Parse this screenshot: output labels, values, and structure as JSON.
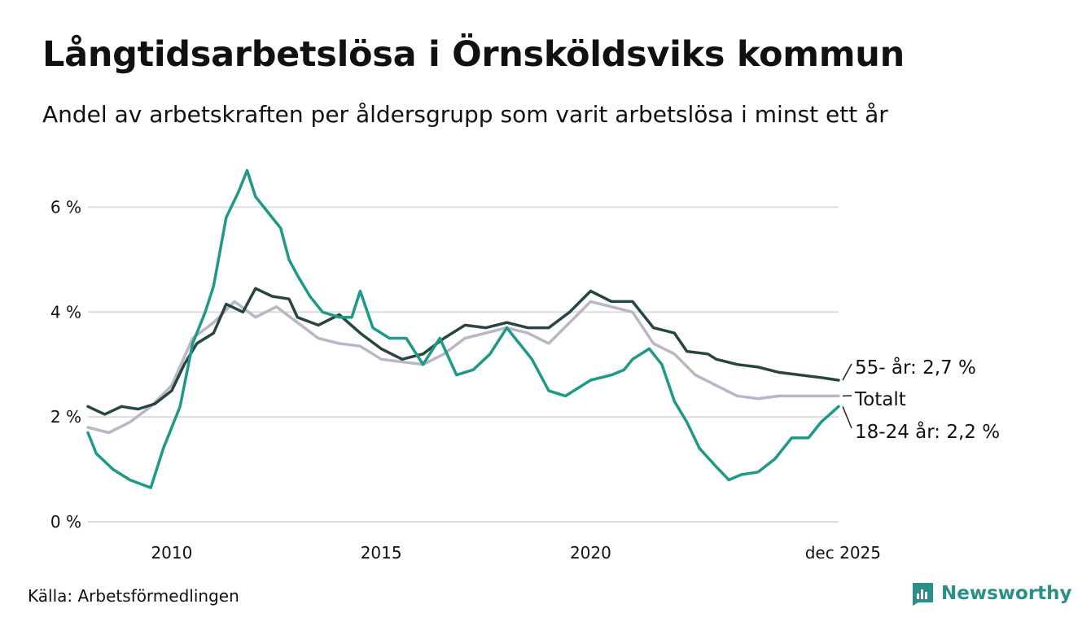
{
  "title": "Långtidsarbetslösa i Örnsköldsviks kommun",
  "subtitle": "Andel av arbetskraften per åldersgrupp som varit arbetslösa i minst ett år",
  "source": "Källa: Arbetsförmedlingen",
  "brand": "Newsworthy",
  "colors": {
    "young": "#1f9987",
    "older": "#27463f",
    "total": "#b9b6c6",
    "grid": "#dcdcdc",
    "brand": "#2a8f86"
  },
  "chart_data": {
    "type": "line",
    "x_range": [
      2008.0,
      2025.92
    ],
    "ylim": [
      0,
      7
    ],
    "y_ticks": [
      0,
      2,
      4,
      6
    ],
    "y_tick_labels": [
      "0 %",
      "2 %",
      "4 %",
      "6 %"
    ],
    "x_ticks": [
      2010,
      2015,
      2020,
      2025.92
    ],
    "x_tick_labels": [
      "2010",
      "2015",
      "2020",
      "dec 2025"
    ],
    "grid": true,
    "series": [
      {
        "key": "total",
        "name": "Totalt",
        "end_label": "Totalt",
        "points": [
          [
            2008,
            1.8
          ],
          [
            2008.5,
            1.7
          ],
          [
            2009,
            1.9
          ],
          [
            2009.5,
            2.2
          ],
          [
            2010,
            2.6
          ],
          [
            2010.5,
            3.5
          ],
          [
            2011,
            3.8
          ],
          [
            2011.5,
            4.2
          ],
          [
            2012,
            3.9
          ],
          [
            2012.5,
            4.1
          ],
          [
            2013,
            3.8
          ],
          [
            2013.5,
            3.5
          ],
          [
            2014,
            3.4
          ],
          [
            2014.5,
            3.35
          ],
          [
            2015,
            3.1
          ],
          [
            2015.5,
            3.05
          ],
          [
            2016,
            3.0
          ],
          [
            2016.5,
            3.2
          ],
          [
            2017,
            3.5
          ],
          [
            2017.5,
            3.6
          ],
          [
            2018,
            3.7
          ],
          [
            2018.5,
            3.6
          ],
          [
            2019,
            3.4
          ],
          [
            2019.5,
            3.8
          ],
          [
            2020,
            4.2
          ],
          [
            2020.5,
            4.1
          ],
          [
            2021,
            4.0
          ],
          [
            2021.5,
            3.4
          ],
          [
            2022,
            3.2
          ],
          [
            2022.5,
            2.8
          ],
          [
            2023,
            2.6
          ],
          [
            2023.5,
            2.4
          ],
          [
            2024,
            2.35
          ],
          [
            2024.5,
            2.4
          ],
          [
            2025,
            2.4
          ],
          [
            2025.5,
            2.4
          ],
          [
            2025.92,
            2.4
          ]
        ]
      },
      {
        "key": "older",
        "name": "55- år",
        "end_label": "55- år: 2,7 %",
        "points": [
          [
            2008,
            2.2
          ],
          [
            2008.4,
            2.05
          ],
          [
            2008.8,
            2.2
          ],
          [
            2009.2,
            2.15
          ],
          [
            2009.6,
            2.25
          ],
          [
            2010,
            2.5
          ],
          [
            2010.3,
            3.0
          ],
          [
            2010.6,
            3.4
          ],
          [
            2011,
            3.6
          ],
          [
            2011.3,
            4.15
          ],
          [
            2011.7,
            4.0
          ],
          [
            2012,
            4.45
          ],
          [
            2012.4,
            4.3
          ],
          [
            2012.8,
            4.25
          ],
          [
            2013,
            3.9
          ],
          [
            2013.5,
            3.75
          ],
          [
            2014,
            3.95
          ],
          [
            2014.5,
            3.6
          ],
          [
            2015,
            3.3
          ],
          [
            2015.5,
            3.1
          ],
          [
            2016,
            3.2
          ],
          [
            2016.5,
            3.5
          ],
          [
            2017,
            3.75
          ],
          [
            2017.5,
            3.7
          ],
          [
            2018,
            3.8
          ],
          [
            2018.5,
            3.7
          ],
          [
            2019,
            3.7
          ],
          [
            2019.5,
            4.0
          ],
          [
            2020,
            4.4
          ],
          [
            2020.5,
            4.2
          ],
          [
            2021,
            4.2
          ],
          [
            2021.5,
            3.7
          ],
          [
            2022,
            3.6
          ],
          [
            2022.3,
            3.25
          ],
          [
            2022.8,
            3.2
          ],
          [
            2023,
            3.1
          ],
          [
            2023.5,
            3.0
          ],
          [
            2024,
            2.95
          ],
          [
            2024.5,
            2.85
          ],
          [
            2025,
            2.8
          ],
          [
            2025.5,
            2.75
          ],
          [
            2025.92,
            2.7
          ]
        ]
      },
      {
        "key": "young",
        "name": "18-24 år",
        "end_label": "18-24 år: 2,2 %",
        "points": [
          [
            2008,
            1.7
          ],
          [
            2008.2,
            1.3
          ],
          [
            2008.6,
            1.0
          ],
          [
            2009,
            0.8
          ],
          [
            2009.5,
            0.65
          ],
          [
            2009.8,
            1.4
          ],
          [
            2010.2,
            2.2
          ],
          [
            2010.5,
            3.4
          ],
          [
            2010.8,
            4.0
          ],
          [
            2011,
            4.5
          ],
          [
            2011.3,
            5.8
          ],
          [
            2011.6,
            6.3
          ],
          [
            2011.8,
            6.7
          ],
          [
            2012,
            6.2
          ],
          [
            2012.3,
            5.9
          ],
          [
            2012.6,
            5.6
          ],
          [
            2012.8,
            5.0
          ],
          [
            2013,
            4.7
          ],
          [
            2013.3,
            4.3
          ],
          [
            2013.6,
            4.0
          ],
          [
            2014,
            3.9
          ],
          [
            2014.3,
            3.9
          ],
          [
            2014.5,
            4.4
          ],
          [
            2014.8,
            3.7
          ],
          [
            2015.2,
            3.5
          ],
          [
            2015.6,
            3.5
          ],
          [
            2016,
            3.0
          ],
          [
            2016.4,
            3.5
          ],
          [
            2016.8,
            2.8
          ],
          [
            2017.2,
            2.9
          ],
          [
            2017.6,
            3.2
          ],
          [
            2018,
            3.7
          ],
          [
            2018.3,
            3.4
          ],
          [
            2018.6,
            3.1
          ],
          [
            2019,
            2.5
          ],
          [
            2019.4,
            2.4
          ],
          [
            2019.8,
            2.6
          ],
          [
            2020,
            2.7
          ],
          [
            2020.5,
            2.8
          ],
          [
            2020.8,
            2.9
          ],
          [
            2021,
            3.1
          ],
          [
            2021.4,
            3.3
          ],
          [
            2021.7,
            3.0
          ],
          [
            2022,
            2.3
          ],
          [
            2022.3,
            1.9
          ],
          [
            2022.6,
            1.4
          ],
          [
            2023,
            1.05
          ],
          [
            2023.3,
            0.8
          ],
          [
            2023.6,
            0.9
          ],
          [
            2024,
            0.95
          ],
          [
            2024.4,
            1.2
          ],
          [
            2024.8,
            1.6
          ],
          [
            2025.2,
            1.6
          ],
          [
            2025.5,
            1.9
          ],
          [
            2025.92,
            2.2
          ]
        ]
      }
    ]
  }
}
